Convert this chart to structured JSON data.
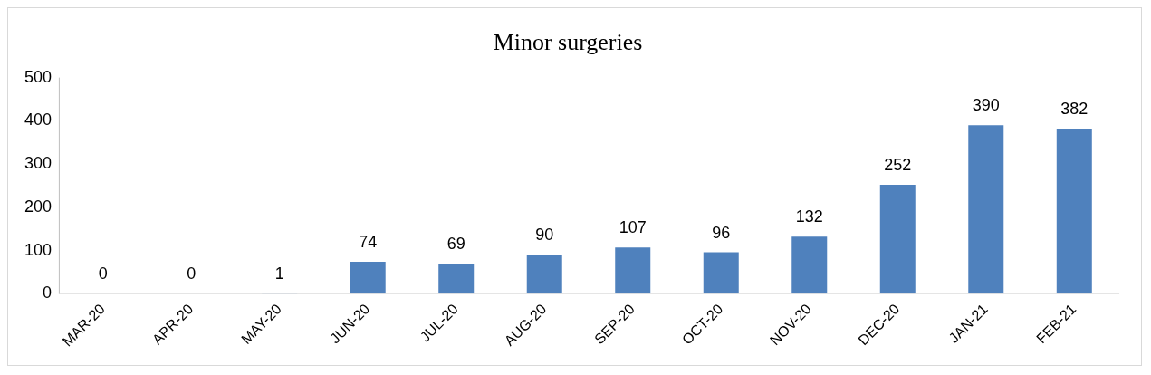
{
  "chart_data": {
    "type": "bar",
    "title": "Minor surgeries",
    "categories": [
      "MAR-20",
      "APR-20",
      "MAY-20",
      "JUN-20",
      "JUL-20",
      "AUG-20",
      "SEP-20",
      "OCT-20",
      "NOV-20",
      "DEC-20",
      "JAN-21",
      "FEB-21"
    ],
    "values": [
      0,
      0,
      1,
      74,
      69,
      90,
      107,
      96,
      132,
      252,
      390,
      382
    ],
    "color": "#4f81bd",
    "ylim": [
      0,
      500
    ],
    "yticks": [
      0,
      100,
      200,
      300,
      400,
      500
    ],
    "grid": false,
    "legend": false,
    "data_labels": true
  }
}
